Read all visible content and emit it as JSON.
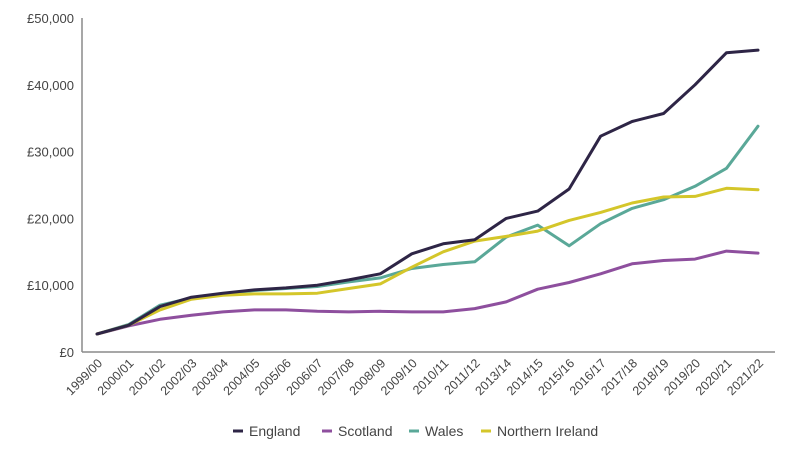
{
  "chart_data": {
    "type": "line",
    "title": "",
    "xlabel": "",
    "ylabel": "",
    "ylim": [
      0,
      50000
    ],
    "yticks": [
      0,
      10000,
      20000,
      30000,
      40000,
      50000
    ],
    "ytick_labels": [
      "£0",
      "£10,000",
      "£20,000",
      "£30,000",
      "£40,000",
      "£50,000"
    ],
    "grid": false,
    "legend_position": "bottom",
    "categories": [
      "1999/00",
      "2000/01",
      "2001/02",
      "2002/03",
      "2003/04",
      "2004/05",
      "2005/06",
      "2006/07",
      "2007/08",
      "2008/09",
      "2009/10",
      "2010/11",
      "2011/12",
      "2013/14",
      "2014/15",
      "2015/16",
      "2016/17",
      "2017/18",
      "2018/19",
      "2019/20",
      "2020/21",
      "2021/22"
    ],
    "series": [
      {
        "name": "England",
        "color": "#2e2546",
        "values": [
          2700,
          4000,
          6800,
          8200,
          8800,
          9300,
          9600,
          10000,
          10800,
          11700,
          14700,
          16200,
          16800,
          20000,
          21100,
          24400,
          32300,
          34500,
          35700,
          40000,
          44800,
          45200
        ]
      },
      {
        "name": "Scotland",
        "color": "#8e4f9e",
        "values": [
          2700,
          3900,
          4900,
          5500,
          6000,
          6300,
          6300,
          6100,
          6000,
          6100,
          6000,
          6000,
          6500,
          7500,
          9400,
          10400,
          11700,
          13200,
          13700,
          13900,
          15100,
          14800
        ]
      },
      {
        "name": "Wales",
        "color": "#5aa898",
        "values": [
          2700,
          4100,
          7000,
          8100,
          8700,
          9200,
          9500,
          9800,
          10500,
          11100,
          12500,
          13100,
          13500,
          17200,
          19000,
          15900,
          19200,
          21500,
          22800,
          24800,
          27500,
          33800
        ]
      },
      {
        "name": "Northern Ireland",
        "color": "#d4c62a",
        "values": [
          2700,
          4000,
          6300,
          7900,
          8500,
          8700,
          8700,
          8800,
          9500,
          10200,
          12700,
          15000,
          16600,
          17300,
          18100,
          19700,
          20900,
          22300,
          23200,
          23300,
          24500,
          24300
        ]
      }
    ]
  }
}
